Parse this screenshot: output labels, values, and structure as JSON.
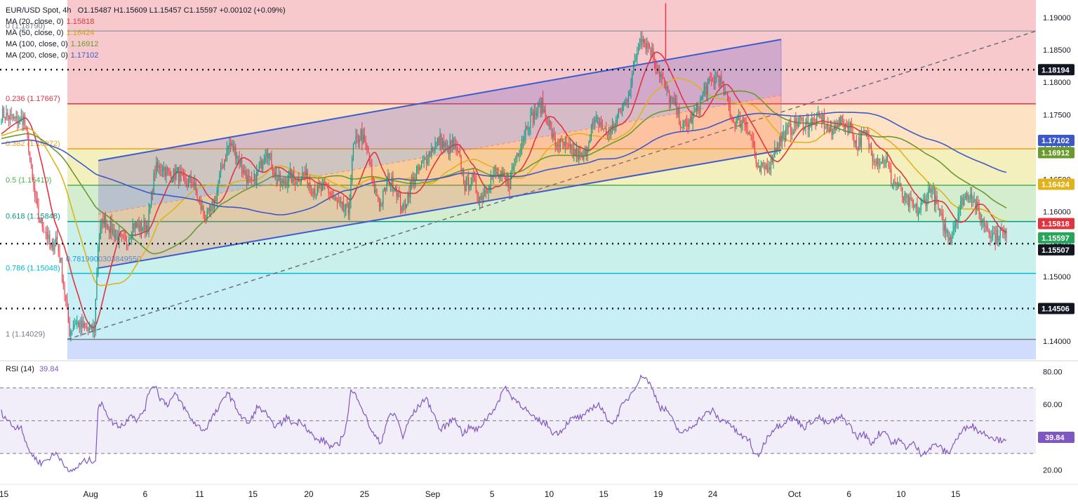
{
  "header": {
    "symbol": "EUR/USD Spot, 4h",
    "ohlc": "O1.15487  H1.15609  L1.15457  C1.15597  +0.00102 (+0.09%)"
  },
  "ma_legend": [
    {
      "label": "MA (20, close, 0)",
      "value": "1.15818",
      "color": "#e0343f"
    },
    {
      "label": "MA (50, close, 0)",
      "value": "1.16424",
      "color": "#e2b318"
    },
    {
      "label": "MA (100, close, 0)",
      "value": "1.16912",
      "color": "#6a9a2e"
    },
    {
      "label": "MA (200, close, 0)",
      "value": "1.17102",
      "color": "#3d59c9"
    }
  ],
  "rsi_legend": {
    "label": "RSI (14)",
    "value": "39.84",
    "color": "#7e57c2"
  },
  "chart_data": {
    "type": "candlestick",
    "ylim": [
      1.1372,
      1.1927
    ],
    "yticks": [
      "1.19000",
      "1.18500",
      "1.18000",
      "1.17500",
      "1.17000",
      "1.16500",
      "1.16000",
      "1.15500",
      "1.15000",
      "1.14500",
      "1.14000"
    ],
    "xticks": [
      "15",
      "Aug",
      "6",
      "11",
      "15",
      "20",
      "25",
      "Sep",
      "5",
      "10",
      "15",
      "19",
      "24",
      "Oct",
      "6",
      "10",
      "15"
    ],
    "xtick_pos": [
      2,
      72,
      116,
      160,
      203,
      248,
      293,
      348,
      396,
      442,
      486,
      530,
      574,
      640,
      684,
      726,
      770
    ],
    "n_bars": 812,
    "anchors": [
      [
        0,
        1.1752
      ],
      [
        12,
        1.174
      ],
      [
        18,
        1.1745
      ],
      [
        22,
        1.17
      ],
      [
        25,
        1.1645
      ],
      [
        30,
        1.159
      ],
      [
        36,
        1.157
      ],
      [
        40,
        1.154
      ],
      [
        44,
        1.156
      ],
      [
        48,
        1.152
      ],
      [
        52,
        1.146
      ],
      [
        55,
        1.1415
      ],
      [
        60,
        1.143
      ],
      [
        66,
        1.142
      ],
      [
        72,
        1.1415
      ],
      [
        75,
        1.142
      ],
      [
        78,
        1.155
      ],
      [
        82,
        1.159
      ],
      [
        88,
        1.1575
      ],
      [
        94,
        1.156
      ],
      [
        100,
        1.155
      ],
      [
        106,
        1.158
      ],
      [
        112,
        1.1575
      ],
      [
        118,
        1.158
      ],
      [
        124,
        1.1665
      ],
      [
        130,
        1.167
      ],
      [
        136,
        1.1655
      ],
      [
        142,
        1.166
      ],
      [
        148,
        1.164
      ],
      [
        154,
        1.165
      ],
      [
        160,
        1.161
      ],
      [
        166,
        1.159
      ],
      [
        172,
        1.1615
      ],
      [
        178,
        1.167
      ],
      [
        184,
        1.1705
      ],
      [
        190,
        1.169
      ],
      [
        196,
        1.166
      ],
      [
        202,
        1.164
      ],
      [
        208,
        1.1665
      ],
      [
        214,
        1.17
      ],
      [
        220,
        1.166
      ],
      [
        226,
        1.164
      ],
      [
        232,
        1.1655
      ],
      [
        238,
        1.165
      ],
      [
        244,
        1.166
      ],
      [
        250,
        1.164
      ],
      [
        256,
        1.163
      ],
      [
        262,
        1.164
      ],
      [
        268,
        1.162
      ],
      [
        274,
        1.1605
      ],
      [
        280,
        1.16
      ],
      [
        284,
        1.17
      ],
      [
        290,
        1.172
      ],
      [
        296,
        1.169
      ],
      [
        300,
        1.164
      ],
      [
        306,
        1.161
      ],
      [
        312,
        1.165
      ],
      [
        318,
        1.164
      ],
      [
        324,
        1.16
      ],
      [
        330,
        1.164
      ],
      [
        336,
        1.166
      ],
      [
        342,
        1.168
      ],
      [
        348,
        1.17
      ],
      [
        354,
        1.171
      ],
      [
        360,
        1.1695
      ],
      [
        364,
        1.1705
      ],
      [
        370,
        1.168
      ],
      [
        374,
        1.164
      ],
      [
        380,
        1.165
      ],
      [
        386,
        1.162
      ],
      [
        392,
        1.164
      ],
      [
        398,
        1.166
      ],
      [
        404,
        1.165
      ],
      [
        410,
        1.1645
      ],
      [
        414,
        1.168
      ],
      [
        420,
        1.171
      ],
      [
        424,
        1.1735
      ],
      [
        430,
        1.175
      ],
      [
        436,
        1.1765
      ],
      [
        442,
        1.1735
      ],
      [
        446,
        1.1705
      ],
      [
        452,
        1.1705
      ],
      [
        458,
        1.1695
      ],
      [
        464,
        1.169
      ],
      [
        470,
        1.168
      ],
      [
        476,
        1.173
      ],
      [
        482,
        1.174
      ],
      [
        488,
        1.172
      ],
      [
        494,
        1.173
      ],
      [
        500,
        1.176
      ],
      [
        504,
        1.177
      ],
      [
        508,
        1.18
      ],
      [
        512,
        1.184
      ],
      [
        516,
        1.1875
      ],
      [
        520,
        1.186
      ],
      [
        524,
        1.185
      ],
      [
        528,
        1.183
      ],
      [
        532,
        1.181
      ],
      [
        538,
        1.178
      ],
      [
        544,
        1.176
      ],
      [
        550,
        1.173
      ],
      [
        556,
        1.174
      ],
      [
        562,
        1.176
      ],
      [
        568,
        1.179
      ],
      [
        574,
        1.18
      ],
      [
        578,
        1.181
      ],
      [
        582,
        1.179
      ],
      [
        586,
        1.177
      ],
      [
        590,
        1.174
      ],
      [
        596,
        1.174
      ],
      [
        600,
        1.174
      ],
      [
        606,
        1.171
      ],
      [
        610,
        1.166
      ],
      [
        614,
        1.1665
      ],
      [
        620,
        1.1675
      ],
      [
        626,
        1.1705
      ],
      [
        632,
        1.172
      ],
      [
        638,
        1.173
      ],
      [
        644,
        1.174
      ],
      [
        650,
        1.1735
      ],
      [
        656,
        1.174
      ],
      [
        662,
        1.1745
      ],
      [
        666,
        1.173
      ],
      [
        670,
        1.172
      ],
      [
        674,
        1.174
      ],
      [
        680,
        1.1735
      ],
      [
        686,
        1.173
      ],
      [
        690,
        1.17
      ],
      [
        694,
        1.1715
      ],
      [
        698,
        1.172
      ],
      [
        702,
        1.169
      ],
      [
        708,
        1.168
      ],
      [
        714,
        1.168
      ],
      [
        718,
        1.165
      ],
      [
        724,
        1.164
      ],
      [
        728,
        1.162
      ],
      [
        734,
        1.161
      ],
      [
        740,
        1.16
      ],
      [
        746,
        1.162
      ],
      [
        750,
        1.164
      ],
      [
        754,
        1.1615
      ],
      [
        758,
        1.159
      ],
      [
        762,
        1.157
      ],
      [
        766,
        1.156
      ],
      [
        770,
        1.159
      ],
      [
        776,
        1.162
      ],
      [
        782,
        1.163
      ],
      [
        786,
        1.161
      ],
      [
        790,
        1.159
      ],
      [
        794,
        1.158
      ],
      [
        798,
        1.157
      ],
      [
        802,
        1.156
      ],
      [
        806,
        1.157
      ],
      [
        811,
        1.15597
      ]
    ],
    "moving_averages": [
      {
        "name": "MA 20",
        "period": 20,
        "color": "#e0343f"
      },
      {
        "name": "MA 50",
        "period": 50,
        "color": "#e2b318"
      },
      {
        "name": "MA 100",
        "period": 100,
        "color": "#6a9a2e"
      },
      {
        "name": "MA 200",
        "period": 200,
        "color": "#3d59c9"
      }
    ],
    "price_labels": [
      {
        "value": "1.18194",
        "bg": "#131722"
      },
      {
        "value": "1.17102",
        "bg": "#3d59c9"
      },
      {
        "value": "1.16912",
        "bg": "#6a9a2e"
      },
      {
        "value": "1.16424",
        "bg": "#e2b318"
      },
      {
        "value": "1.15818",
        "bg": "#e0343f"
      },
      {
        "value": "1.15597",
        "bg": "#26a65b"
      },
      {
        "value": "1.15507",
        "bg": "#131722"
      },
      {
        "value": "1.14506",
        "bg": "#131722"
      }
    ],
    "horizontal_dotted": [
      1.18194,
      1.15507,
      1.14506
    ],
    "fibonacci": {
      "high": 1.1879,
      "low": 1.14029,
      "levels": [
        {
          "ratio": 0,
          "label": "0 (1.18790)",
          "price": 1.1879,
          "fill": "#f7c9cd",
          "line": "#9ea3aa"
        },
        {
          "ratio": 0.236,
          "label": "0.236 (1.17667)",
          "price": 1.17667,
          "fill": "#fde2c4",
          "line": "#e0343f"
        },
        {
          "ratio": 0.382,
          "label": "0.382 (1.16972)",
          "price": 1.16972,
          "fill": "#f3f0bd",
          "line": "#f0a21c"
        },
        {
          "ratio": 0.5,
          "label": "0.5 (1.16410)",
          "price": 1.1641,
          "fill": "#d4edcf",
          "line": "#4caf50"
        },
        {
          "ratio": 0.618,
          "label": "0.618 (1.15848)",
          "price": 1.15848,
          "fill": "#c9f0ea",
          "line": "#089981"
        },
        {
          "ratio": 0.786,
          "label": "0.786 (1.15048)",
          "price": 1.15048,
          "fill": "#c8eef6",
          "line": "#00bcd4"
        },
        {
          "ratio": 1,
          "label": "1 (1.14029)",
          "price": 1.14029,
          "fill": "#e2e3e6",
          "line": "#787b86"
        }
      ],
      "extension_fill": "#cfdcfb"
    },
    "extra_label": "0.7819900303849550",
    "rsi": {
      "period": 14,
      "ylim": [
        12,
        84
      ],
      "yticks": [
        "80.00",
        "60.00",
        "40.00",
        "20.00"
      ],
      "bands": [
        30,
        50,
        70
      ],
      "current": "39.84",
      "anchors": [
        [
          0,
          55
        ],
        [
          10,
          46
        ],
        [
          16,
          47
        ],
        [
          20,
          35
        ],
        [
          26,
          28
        ],
        [
          32,
          24
        ],
        [
          38,
          27
        ],
        [
          44,
          30
        ],
        [
          50,
          25
        ],
        [
          54,
          18
        ],
        [
          58,
          20
        ],
        [
          62,
          22
        ],
        [
          66,
          25
        ],
        [
          72,
          26
        ],
        [
          76,
          26
        ],
        [
          78,
          58
        ],
        [
          82,
          60
        ],
        [
          88,
          50
        ],
        [
          94,
          47
        ],
        [
          100,
          48
        ],
        [
          104,
          55
        ],
        [
          110,
          50
        ],
        [
          116,
          58
        ],
        [
          120,
          70
        ],
        [
          124,
          72
        ],
        [
          128,
          64
        ],
        [
          134,
          60
        ],
        [
          140,
          66
        ],
        [
          146,
          60
        ],
        [
          152,
          52
        ],
        [
          158,
          47
        ],
        [
          164,
          44
        ],
        [
          170,
          52
        ],
        [
          176,
          58
        ],
        [
          182,
          68
        ],
        [
          188,
          60
        ],
        [
          194,
          52
        ],
        [
          200,
          48
        ],
        [
          206,
          58
        ],
        [
          212,
          56
        ],
        [
          218,
          48
        ],
        [
          224,
          47
        ],
        [
          230,
          52
        ],
        [
          236,
          48
        ],
        [
          242,
          50
        ],
        [
          248,
          44
        ],
        [
          254,
          38
        ],
        [
          260,
          38
        ],
        [
          266,
          34
        ],
        [
          272,
          35
        ],
        [
          278,
          46
        ],
        [
          282,
          68
        ],
        [
          288,
          64
        ],
        [
          294,
          52
        ],
        [
          300,
          42
        ],
        [
          306,
          36
        ],
        [
          312,
          52
        ],
        [
          318,
          54
        ],
        [
          324,
          40
        ],
        [
          330,
          52
        ],
        [
          336,
          58
        ],
        [
          342,
          64
        ],
        [
          348,
          56
        ],
        [
          354,
          44
        ],
        [
          360,
          48
        ],
        [
          366,
          52
        ],
        [
          372,
          42
        ],
        [
          378,
          46
        ],
        [
          384,
          44
        ],
        [
          390,
          50
        ],
        [
          396,
          56
        ],
        [
          402,
          62
        ],
        [
          406,
          72
        ],
        [
          410,
          66
        ],
        [
          416,
          62
        ],
        [
          422,
          58
        ],
        [
          428,
          52
        ],
        [
          434,
          50
        ],
        [
          440,
          48
        ],
        [
          446,
          42
        ],
        [
          452,
          44
        ],
        [
          458,
          50
        ],
        [
          464,
          52
        ],
        [
          470,
          52
        ],
        [
          476,
          58
        ],
        [
          482,
          60
        ],
        [
          488,
          52
        ],
        [
          494,
          48
        ],
        [
          500,
          58
        ],
        [
          506,
          64
        ],
        [
          512,
          72
        ],
        [
          518,
          78
        ],
        [
          522,
          74
        ],
        [
          526,
          68
        ],
        [
          532,
          58
        ],
        [
          538,
          56
        ],
        [
          544,
          46
        ],
        [
          550,
          42
        ],
        [
          556,
          46
        ],
        [
          562,
          50
        ],
        [
          568,
          54
        ],
        [
          574,
          56
        ],
        [
          580,
          50
        ],
        [
          586,
          50
        ],
        [
          592,
          44
        ],
        [
          598,
          40
        ],
        [
          604,
          38
        ],
        [
          608,
          28
        ],
        [
          612,
          30
        ],
        [
          618,
          40
        ],
        [
          624,
          46
        ],
        [
          630,
          48
        ],
        [
          636,
          52
        ],
        [
          642,
          50
        ],
        [
          648,
          46
        ],
        [
          654,
          50
        ],
        [
          660,
          52
        ],
        [
          666,
          48
        ],
        [
          672,
          50
        ],
        [
          678,
          52
        ],
        [
          684,
          48
        ],
        [
          690,
          40
        ],
        [
          696,
          42
        ],
        [
          702,
          36
        ],
        [
          708,
          42
        ],
        [
          714,
          44
        ],
        [
          718,
          36
        ],
        [
          724,
          38
        ],
        [
          730,
          34
        ],
        [
          736,
          36
        ],
        [
          742,
          30
        ],
        [
          748,
          32
        ],
        [
          754,
          36
        ],
        [
          760,
          32
        ],
        [
          764,
          30
        ],
        [
          770,
          38
        ],
        [
          776,
          44
        ],
        [
          782,
          48
        ],
        [
          788,
          44
        ],
        [
          794,
          42
        ],
        [
          800,
          40
        ],
        [
          806,
          38
        ],
        [
          811,
          39.84
        ]
      ]
    }
  }
}
